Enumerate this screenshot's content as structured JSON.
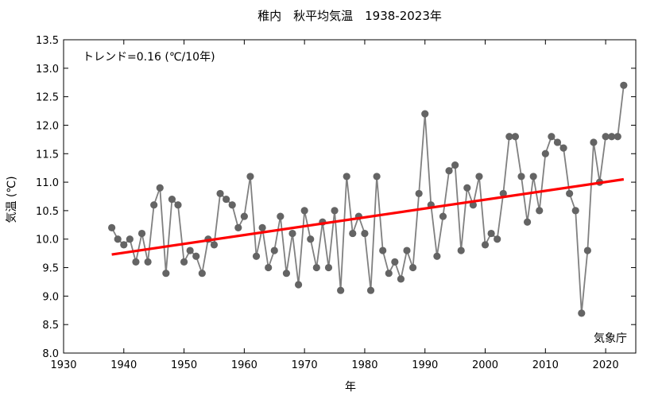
{
  "chart_data": {
    "type": "line",
    "title": "稚内　秋平均気温　1938-2023年",
    "xlabel": "年",
    "ylabel": "気温 (℃)",
    "xlim": [
      1930,
      2025
    ],
    "ylim": [
      8.0,
      13.5
    ],
    "x_ticks": [
      1930,
      1940,
      1950,
      1960,
      1970,
      1980,
      1990,
      2000,
      2010,
      2020
    ],
    "x_tick_labels": [
      "1930",
      "1940",
      "1950",
      "1960",
      "1970",
      "1980",
      "1990",
      "2000",
      "2010",
      "2020"
    ],
    "y_ticks": [
      8.0,
      8.5,
      9.0,
      9.5,
      10.0,
      10.5,
      11.0,
      11.5,
      12.0,
      12.5,
      13.0,
      13.5
    ],
    "y_tick_labels": [
      "8.0",
      "8.5",
      "9.0",
      "9.5",
      "10.0",
      "10.5",
      "11.0",
      "11.5",
      "12.0",
      "12.5",
      "13.0",
      "13.5"
    ],
    "grid": false,
    "trend_annotation": "トレンド=0.16 (℃/10年)",
    "source_annotation": "気象庁",
    "series": [
      {
        "x": [
          1938,
          1939,
          1940,
          1941,
          1942,
          1943,
          1944,
          1945,
          1946,
          1947,
          1948,
          1949,
          1950,
          1951,
          1952,
          1953,
          1954,
          1955,
          1956,
          1957,
          1958,
          1959,
          1960,
          1961,
          1962,
          1963,
          1964,
          1965,
          1966,
          1967,
          1968,
          1969,
          1970,
          1971,
          1972,
          1973,
          1974,
          1975,
          1976,
          1977,
          1978,
          1979,
          1980,
          1981,
          1982,
          1983,
          1984,
          1985,
          1986,
          1987,
          1988,
          1989,
          1990,
          1991,
          1992,
          1993,
          1994,
          1995,
          1996,
          1997,
          1998,
          1999,
          2000,
          2001,
          2002,
          2003,
          2004,
          2005,
          2006,
          2007,
          2008,
          2009,
          2010,
          2011,
          2012,
          2013,
          2014,
          2015,
          2016,
          2017,
          2018,
          2019,
          2020,
          2021,
          2022,
          2023
        ],
        "values": [
          10.2,
          10.0,
          9.9,
          10.0,
          9.6,
          10.1,
          9.6,
          10.6,
          10.9,
          9.4,
          10.7,
          10.6,
          9.6,
          9.8,
          9.7,
          9.4,
          10.0,
          9.9,
          10.8,
          10.7,
          10.6,
          10.2,
          10.4,
          11.1,
          9.7,
          10.2,
          9.5,
          9.8,
          10.4,
          9.4,
          10.1,
          9.2,
          10.5,
          10.0,
          9.5,
          10.3,
          9.5,
          10.5,
          9.1,
          11.1,
          10.1,
          10.4,
          10.1,
          9.1,
          11.1,
          9.8,
          9.4,
          9.6,
          9.3,
          9.8,
          9.5,
          10.8,
          12.2,
          10.6,
          9.7,
          10.4,
          11.2,
          11.3,
          9.8,
          10.9,
          10.6,
          11.1,
          9.9,
          10.1,
          10.0,
          10.8,
          11.8,
          11.8,
          11.1,
          10.3,
          11.1,
          10.5,
          11.5,
          11.8,
          11.7,
          11.6,
          10.8,
          10.5,
          8.7,
          9.8,
          11.7,
          11.0,
          11.8,
          11.8,
          11.8,
          12.7
        ],
        "line_color": "#808080",
        "marker_color": "#646464"
      }
    ],
    "trend_line": {
      "x": [
        1938,
        2023
      ],
      "values": [
        9.73,
        11.05
      ],
      "color": "#ff0000"
    }
  }
}
